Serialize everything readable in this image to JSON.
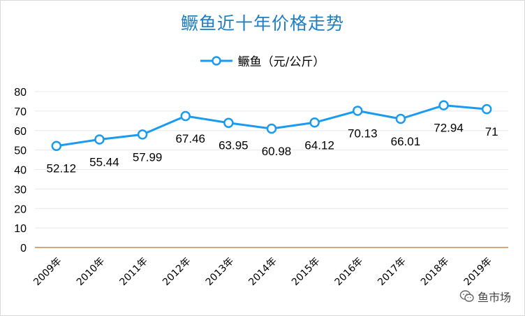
{
  "chart_data": {
    "type": "line",
    "title": "鳜鱼近十年价格走势",
    "xlabel": "",
    "ylabel": "",
    "categories": [
      "2009年",
      "2010年",
      "2011年",
      "2012年",
      "2013年",
      "2014年",
      "2015年",
      "2016年",
      "2017年",
      "2018年",
      "2019年"
    ],
    "series": [
      {
        "name": "鳜鱼（元/公斤）",
        "values": [
          52.12,
          55.44,
          57.99,
          67.46,
          63.95,
          60.98,
          64.12,
          70.13,
          66.01,
          72.94,
          71
        ],
        "labels": [
          "52.12",
          "55.44",
          "57.99",
          "67.46",
          "63.95",
          "60.98",
          "64.12",
          "70.13",
          "66.01",
          "72.94",
          "71"
        ],
        "color": "#1a9bef"
      }
    ],
    "ylim": [
      0,
      80
    ],
    "yticks": [
      0,
      10,
      20,
      30,
      40,
      50,
      60,
      70,
      80
    ],
    "grid": true,
    "legend_position": "top-center"
  },
  "watermark": {
    "text": "鱼市场",
    "icon": "wechat-icon"
  }
}
